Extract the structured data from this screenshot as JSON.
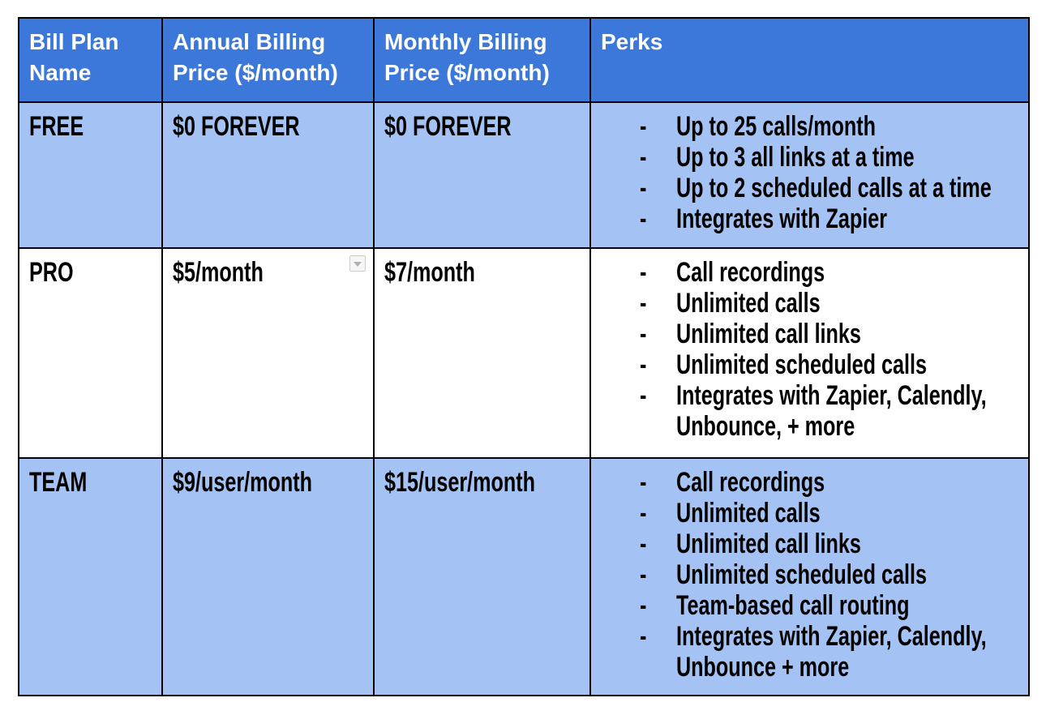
{
  "colors": {
    "header_bg": "#3b78d9",
    "header_text": "#ffffff",
    "shaded_row_bg": "#a4c2f4",
    "plain_row_bg": "#ffffff",
    "body_text": "#000000",
    "table_border": "#000000",
    "chip_bg": "#f6f6f6",
    "chip_border": "#cccccc",
    "chip_arrow": "#b0b0b0"
  },
  "icons": {
    "dropdown_chip": "dropdown-arrow-icon"
  },
  "table": {
    "perk_bullet": "-",
    "columns": [
      {
        "label": "Bill Plan Name"
      },
      {
        "label": "Annual Billing Price ($/month)"
      },
      {
        "label": "Monthly Billing Price ($/month)"
      },
      {
        "label": "Perks"
      }
    ],
    "rows": [
      {
        "plan": "FREE",
        "annual_price": "$0 FOREVER",
        "monthly_price": "$0 FOREVER",
        "perks": [
          "Up to 25 calls/month",
          "Up to 3 all links at a time",
          "Up to 2 scheduled calls at a time",
          "Integrates with Zapier"
        ]
      },
      {
        "plan": "PRO",
        "annual_price": "$5/month",
        "monthly_price": "$7/month",
        "perks": [
          "Call recordings",
          "Unlimited calls",
          "Unlimited call links",
          "Unlimited scheduled calls",
          "Integrates with Zapier, Calendly, Unbounce, + more"
        ]
      },
      {
        "plan": "TEAM",
        "annual_price": "$9/user/month",
        "monthly_price": "$15/user/month",
        "perks": [
          "Call recordings",
          "Unlimited calls",
          "Unlimited call links",
          "Unlimited scheduled calls",
          "Team-based call routing",
          "Integrates with Zapier, Calendly, Unbounce + more"
        ]
      }
    ]
  }
}
